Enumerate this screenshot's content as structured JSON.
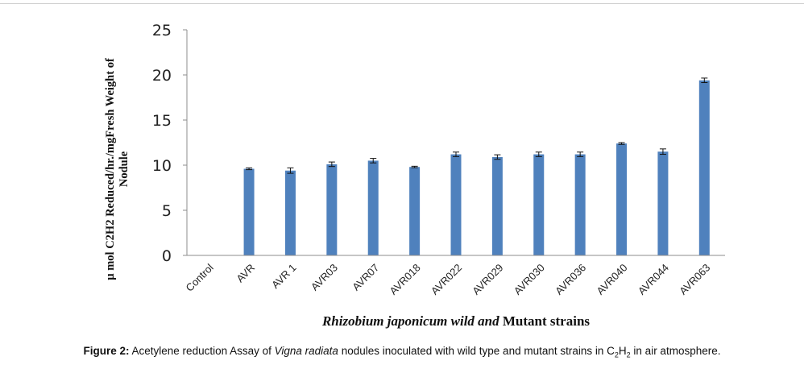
{
  "chart_data": {
    "type": "bar",
    "title": "",
    "ylabel_line1": "µ mol C2H2 Reduced/hr./mgFresh Weight of",
    "ylabel_line2": "Nodule",
    "xlabel": {
      "italic": "Rhizobium japonicum wild and",
      "normal": " Mutant strains"
    },
    "categories": [
      "Control",
      "AVR",
      "AVR 1",
      "AVR03",
      "AVR07",
      "AVR018",
      "AVR022",
      "AVR029",
      "AVR030",
      "AVR036",
      "AVR040",
      "AVR044",
      "AVR063"
    ],
    "values": [
      0,
      9.6,
      9.4,
      10.1,
      10.5,
      9.8,
      11.2,
      10.9,
      11.2,
      11.2,
      12.4,
      11.5,
      19.4
    ],
    "errors": [
      0,
      0.1,
      0.3,
      0.25,
      0.25,
      0.08,
      0.25,
      0.25,
      0.25,
      0.25,
      0.1,
      0.3,
      0.25
    ],
    "ylim": [
      0,
      25
    ],
    "yticks": [
      0,
      5,
      10,
      15,
      20,
      25
    ],
    "bar_color": "#4f81bd",
    "grid": false
  },
  "caption": {
    "label": "Figure 2:",
    "text1": " Acetylene reduction Assay of ",
    "italic": "Vigna radiata",
    "text2": " nodules inoculated with wild type and mutant strains in C",
    "sub1": "2",
    "text3": "H",
    "sub2": "2",
    "text4": " in air atmosphere."
  }
}
